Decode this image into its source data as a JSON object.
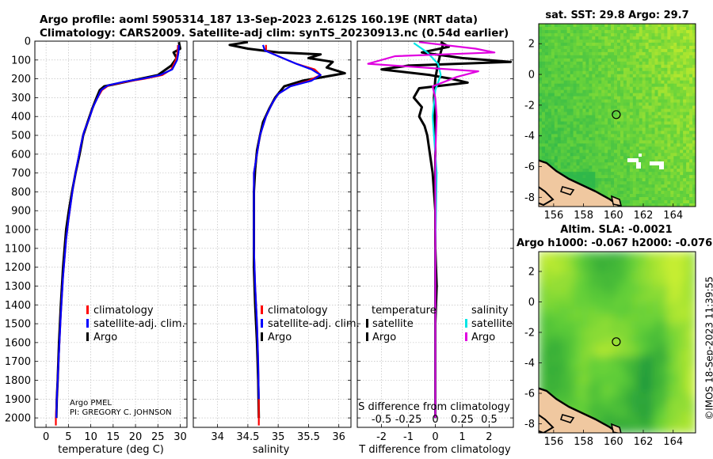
{
  "header": {
    "line1": "Argo profile: aoml 5905314_187 13-Sep-2023 2.612S 160.19E (NRT data)",
    "line2": "Climatology: CARS2009. Satellite-adj clim: synTS_20230913.nc (0.54d earlier)"
  },
  "colors": {
    "climatology": "#ff0000",
    "satellite_adj": "#0000ff",
    "argo": "#000000",
    "sat_temp": "#000000",
    "sat_sal": "#00e5e5",
    "argo_sal": "#e000e0"
  },
  "credit": {
    "line1": "Argo PMEL",
    "line2": "PI: GREGORY C. JOHNSON"
  },
  "watermark": "©IMOS 18-Sep-2023 11:39:55",
  "legend_profile": [
    "climatology",
    "satellite-adj. clim.",
    "Argo"
  ],
  "legend_diff": {
    "temp_header": "temperature",
    "sal_header": "salinity",
    "temp_items": [
      "satellite",
      "Argo"
    ],
    "sal_items": [
      "satellite",
      "Argo"
    ]
  },
  "chart_data": [
    {
      "id": "temperature",
      "type": "line",
      "xlabel": "temperature (deg C)",
      "ylabel": "",
      "xlim": [
        -2.5,
        31.5
      ],
      "ylim": [
        0,
        2050
      ],
      "y_reversed": true,
      "xticks": [
        0,
        5,
        10,
        15,
        20,
        25,
        30
      ],
      "yticks": [
        0,
        100,
        200,
        300,
        400,
        500,
        600,
        700,
        800,
        900,
        1000,
        1100,
        1200,
        1300,
        1400,
        1500,
        1600,
        1700,
        1800,
        1900,
        2000
      ],
      "grid": true,
      "series": [
        {
          "name": "climatology",
          "color": "#ff0000",
          "x": [
            29.5,
            29.4,
            29.0,
            28.0,
            26.0,
            22.0,
            18.0,
            14.0,
            12.5,
            11.5,
            10.5,
            9.5,
            8.5,
            7.8,
            7.0,
            6.2,
            5.6,
            5.0,
            4.5,
            3.8,
            3.3,
            2.9,
            2.6,
            2.4,
            2.2,
            2.2
          ],
          "y": [
            20,
            60,
            100,
            150,
            180,
            200,
            215,
            235,
            260,
            300,
            350,
            420,
            480,
            550,
            650,
            750,
            850,
            950,
            1050,
            1250,
            1450,
            1650,
            1800,
            1900,
            2000,
            2040
          ]
        },
        {
          "name": "satellite-adj. clim.",
          "color": "#0000ff",
          "x": [
            29.7,
            29.6,
            29.3,
            28.2,
            25.5,
            21.5,
            17.5,
            13.8,
            12.3,
            11.5,
            10.5,
            9.5,
            8.5,
            7.8,
            7.0,
            6.2,
            5.6,
            5.0,
            4.5,
            3.8,
            3.3,
            2.9,
            2.6,
            2.4,
            2.3
          ],
          "y": [
            20,
            60,
            100,
            150,
            180,
            200,
            215,
            235,
            260,
            300,
            350,
            420,
            480,
            550,
            650,
            750,
            850,
            950,
            1050,
            1250,
            1450,
            1650,
            1800,
            1900,
            2000
          ]
        },
        {
          "name": "Argo",
          "color": "#000000",
          "x": [
            29.7,
            30.0,
            28.5,
            29.2,
            28.0,
            25.0,
            20.0,
            16.0,
            13.0,
            12.0,
            11.3,
            10.3,
            9.3,
            8.3,
            7.5,
            6.6,
            5.8,
            5.1,
            4.5,
            3.8,
            3.3,
            2.9,
            2.6,
            2.4,
            2.3
          ],
          "y": [
            5,
            40,
            60,
            90,
            130,
            180,
            205,
            225,
            240,
            260,
            300,
            360,
            430,
            500,
            600,
            700,
            800,
            900,
            1000,
            1200,
            1400,
            1600,
            1800,
            1900,
            2000
          ]
        }
      ]
    },
    {
      "id": "salinity",
      "type": "line",
      "xlabel": "salinity",
      "xlim": [
        33.6,
        36.2
      ],
      "ylim": [
        0,
        2050
      ],
      "y_reversed": true,
      "xticks": [
        34,
        34.5,
        35,
        35.5,
        36
      ],
      "xticklabels": [
        "34",
        "34.5",
        "35",
        "35.5",
        "36"
      ],
      "grid": true,
      "series": [
        {
          "name": "climatology",
          "color": "#ff0000",
          "x": [
            34.8,
            34.8,
            35.0,
            35.3,
            35.6,
            35.7,
            35.5,
            35.2,
            35.0,
            34.9,
            34.8,
            34.7,
            34.65,
            34.6,
            34.6,
            34.6,
            34.6,
            34.62,
            34.65,
            34.67,
            34.68,
            34.68
          ],
          "y": [
            20,
            50,
            80,
            120,
            150,
            180,
            210,
            240,
            280,
            330,
            400,
            500,
            600,
            700,
            800,
            900,
            1100,
            1300,
            1500,
            1700,
            1900,
            2040
          ]
        },
        {
          "name": "satellite-adj. clim.",
          "color": "#0000ff",
          "x": [
            34.75,
            34.78,
            35.0,
            35.3,
            35.55,
            35.7,
            35.55,
            35.2,
            35.0,
            34.9,
            34.8,
            34.7,
            34.65,
            34.6,
            34.6,
            34.6,
            34.6,
            34.62,
            34.65,
            34.67,
            34.68
          ],
          "y": [
            20,
            50,
            80,
            120,
            150,
            180,
            210,
            240,
            280,
            330,
            400,
            500,
            600,
            700,
            800,
            900,
            1100,
            1300,
            1500,
            1700,
            1900
          ]
        },
        {
          "name": "Argo",
          "color": "#000000",
          "x": [
            34.5,
            34.2,
            34.5,
            35.0,
            35.7,
            35.5,
            35.9,
            35.8,
            36.1,
            35.4,
            35.1,
            34.95,
            34.85,
            34.75,
            34.7,
            34.65,
            34.62,
            34.6,
            34.6,
            34.6,
            34.62,
            34.65,
            34.67,
            34.68
          ],
          "y": [
            5,
            20,
            40,
            60,
            70,
            90,
            110,
            140,
            170,
            210,
            240,
            300,
            360,
            430,
            500,
            580,
            680,
            800,
            1000,
            1200,
            1400,
            1600,
            1800,
            2000
          ]
        }
      ]
    },
    {
      "id": "difference",
      "type": "line",
      "xlabel": "T difference from climatology",
      "x2label": "S difference from climatology",
      "xlim": [
        -2.9,
        2.9
      ],
      "ylim": [
        0,
        2050
      ],
      "y_reversed": true,
      "xticks": [
        -2,
        -1,
        0,
        1,
        2
      ],
      "x2ticks": [
        -0.5,
        -0.25,
        0,
        0.25,
        0.5
      ],
      "x2ticklabels": [
        "-0.5",
        "-0.25",
        "0",
        "0.25",
        "0.5"
      ],
      "s_scale": 4,
      "grid": true,
      "series": [
        {
          "name": "temperature satellite",
          "color": "#000000",
          "x": [
            0.3,
            0.2,
            0.1,
            0.0,
            -0.05,
            0.0,
            0.0,
            0.0,
            0.0,
            0.0
          ],
          "y": [
            10,
            60,
            120,
            200,
            300,
            500,
            800,
            1200,
            1600,
            2000
          ]
        },
        {
          "name": "temperature Argo",
          "color": "#000000",
          "x": [
            0.2,
            0.5,
            -0.5,
            1.0,
            2.8,
            -1.0,
            -2.0,
            -0.2,
            0.6,
            1.2,
            -0.6,
            -0.8,
            -0.5,
            -0.6,
            -0.4,
            -0.3,
            -0.2,
            -0.1,
            -0.05,
            0.0,
            0.0,
            0.05,
            0.0,
            0.0,
            0.0
          ],
          "y": [
            5,
            30,
            60,
            90,
            110,
            130,
            150,
            180,
            200,
            220,
            250,
            300,
            350,
            400,
            450,
            500,
            600,
            700,
            800,
            900,
            1100,
            1300,
            1500,
            1700,
            2000
          ]
        },
        {
          "name": "salinity satellite",
          "color": "#00e5e5",
          "x": [
            -0.8,
            -0.3,
            0.1,
            0.2,
            0.0,
            -0.1,
            0.05,
            0.0,
            0.0,
            0.0
          ],
          "y": [
            10,
            60,
            120,
            180,
            260,
            400,
            700,
            1100,
            1500,
            2000
          ]
        },
        {
          "name": "salinity Argo",
          "color": "#e000e0",
          "x": [
            -0.6,
            1.5,
            2.2,
            -1.5,
            -2.5,
            1.6,
            0.8,
            -0.1,
            0.0,
            0.05,
            0.0,
            0.0,
            0.0,
            0.0,
            0.0
          ],
          "y": [
            5,
            40,
            60,
            80,
            120,
            160,
            190,
            240,
            300,
            400,
            600,
            900,
            1300,
            1700,
            2000
          ]
        }
      ]
    },
    {
      "id": "sst_map",
      "type": "heatmap",
      "title": "sat. SST: 29.8 Argo: 29.7",
      "xlim": [
        155,
        165.5
      ],
      "ylim": [
        -8.6,
        3.3
      ],
      "xticks": [
        156,
        158,
        160,
        162,
        164
      ],
      "yticks": [
        2,
        0,
        -2,
        -4,
        -6,
        -8
      ],
      "argo_position": [
        160.19,
        -2.612
      ]
    },
    {
      "id": "sla_map",
      "type": "heatmap",
      "title": "Altim. SLA: -0.0021",
      "subtitle": "Argo h1000: -0.067 h2000: -0.076",
      "xlim": [
        155,
        165.5
      ],
      "ylim": [
        -8.6,
        3.3
      ],
      "xticks": [
        156,
        158,
        160,
        162,
        164
      ],
      "yticks": [
        2,
        0,
        -2,
        -4,
        -6,
        -8
      ],
      "argo_position": [
        160.19,
        -2.612
      ]
    }
  ]
}
